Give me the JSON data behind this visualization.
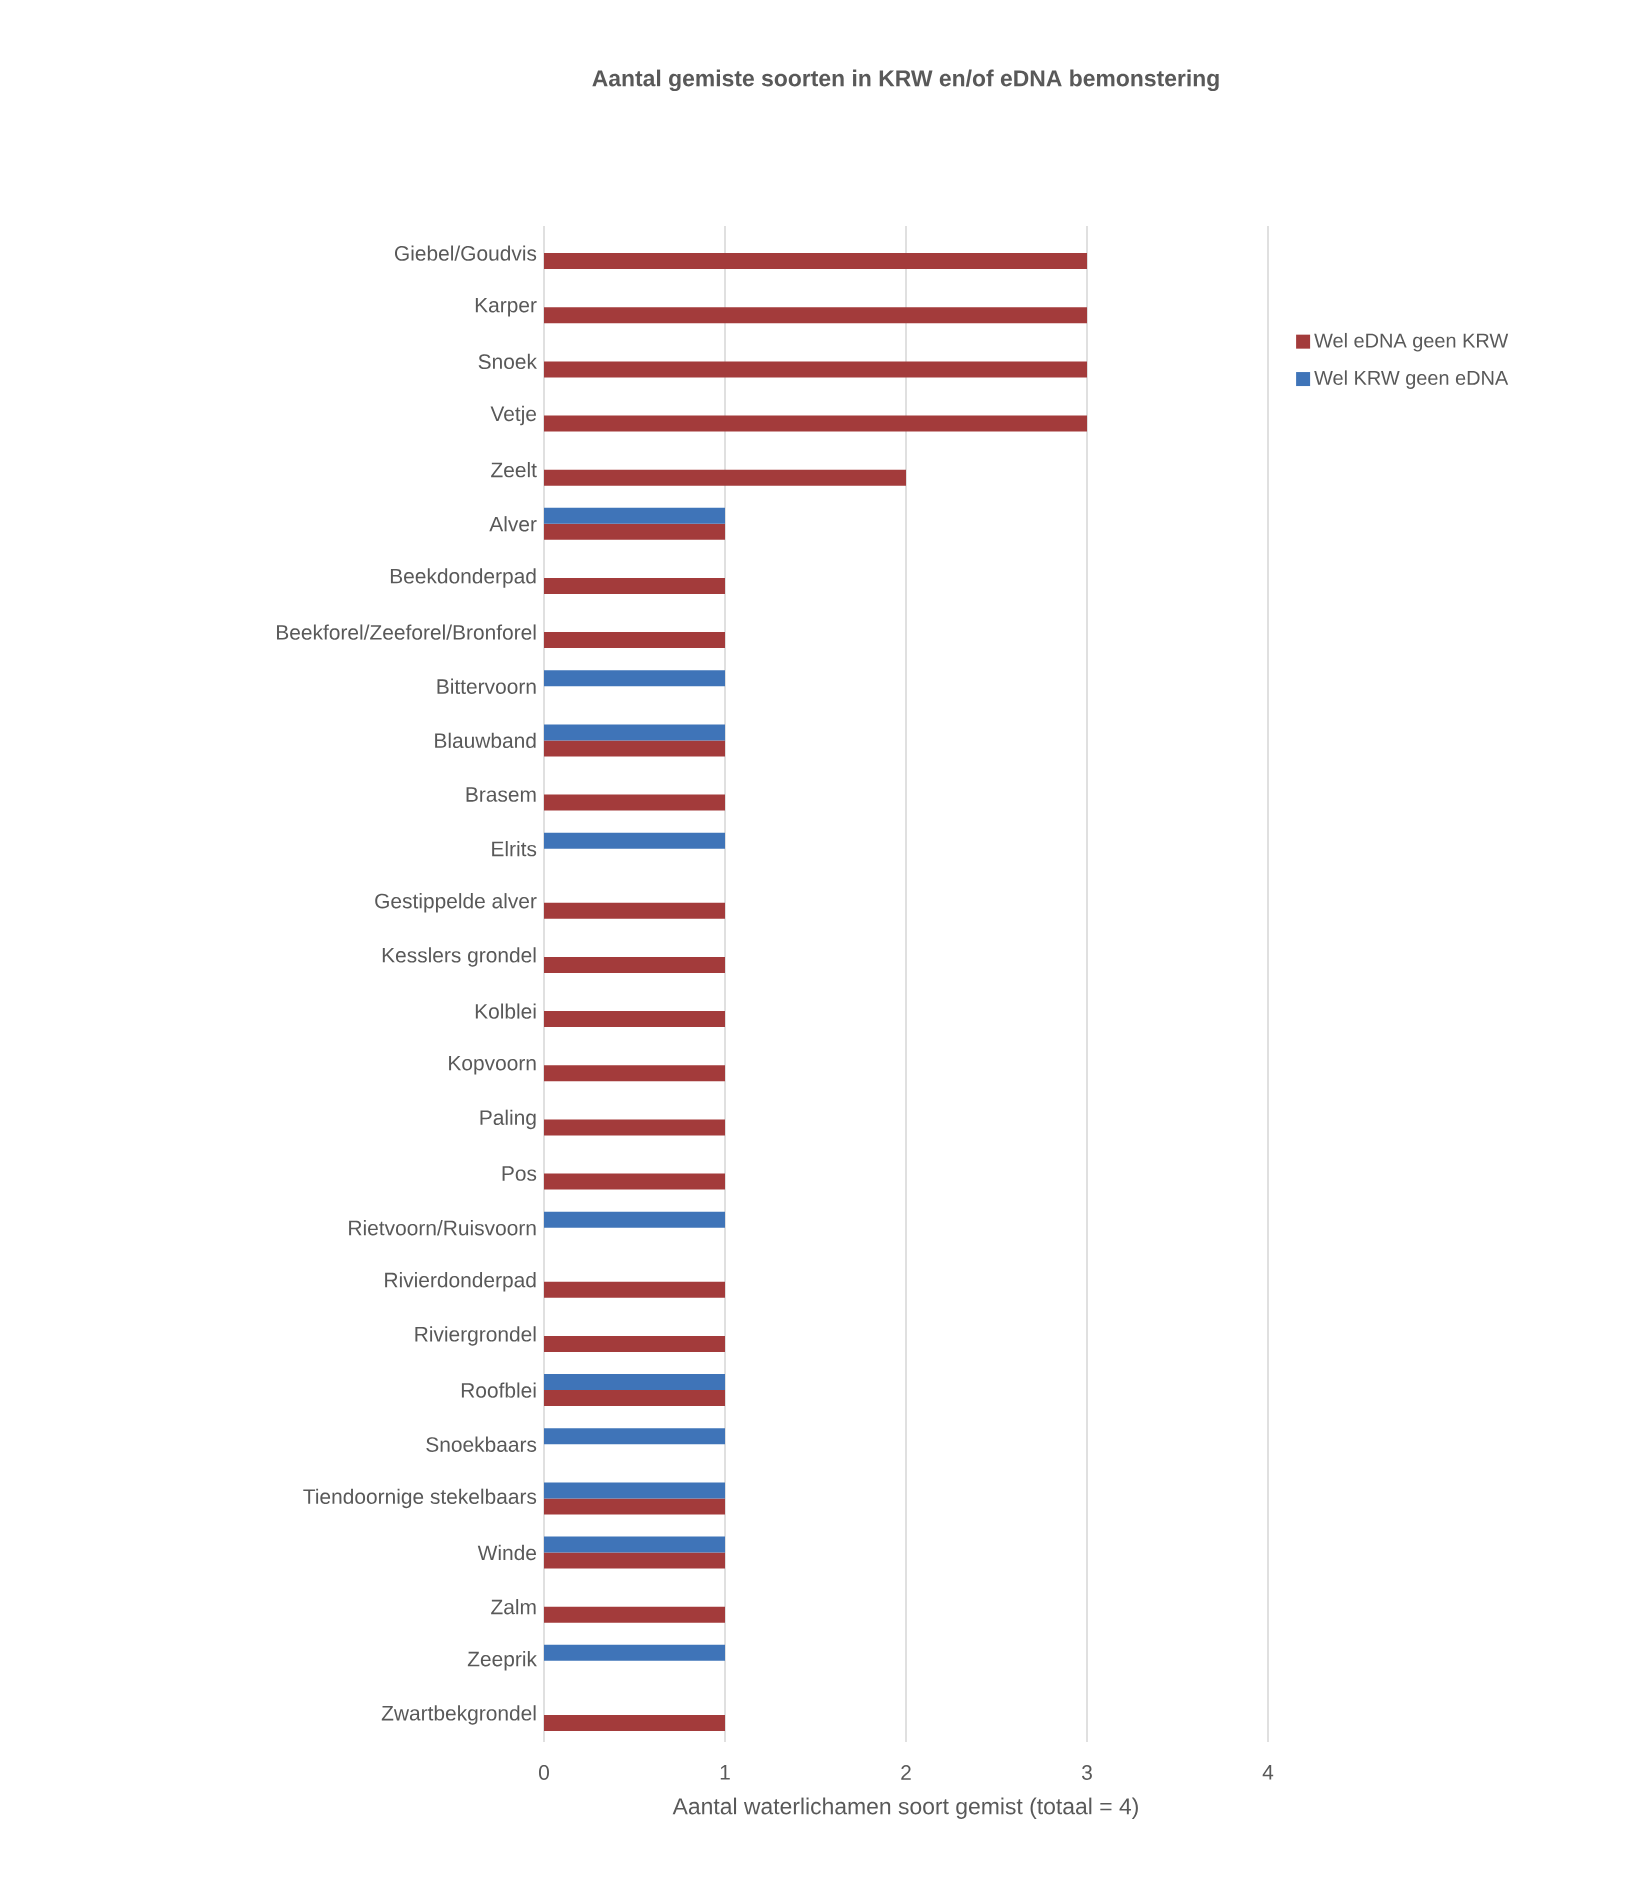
{
  "chart_data": {
    "type": "bar",
    "orientation": "horizontal",
    "title": "Aantal gemiste soorten in KRW en/of eDNA bemonstering",
    "xlabel": "Aantal waterlichamen soort gemist (totaal = 4)",
    "categories": [
      "Giebel/Goudvis",
      "Karper",
      "Snoek",
      "Vetje",
      "Zeelt",
      "Alver",
      "Beekdonderpad",
      "Beekforel/Zeeforel/Bronforel",
      "Bittervoorn",
      "Blauwband",
      "Brasem",
      "Elrits",
      "Gestippelde alver",
      "Kesslers grondel",
      "Kolblei",
      "Kopvoorn",
      "Paling",
      "Pos",
      "Rietvoorn/Ruisvoorn",
      "Rivierdonderpad",
      "Riviergrondel",
      "Roofblei",
      "Snoekbaars",
      "Tiendoornige stekelbaars",
      "Winde",
      "Zalm",
      "Zeeprik",
      "Zwartbekgrondel"
    ],
    "series": [
      {
        "name": "Wel eDNA geen KRW",
        "color": "#a33b3b",
        "values": [
          3,
          3,
          3,
          3,
          2,
          1,
          1,
          1,
          null,
          1,
          1,
          null,
          1,
          1,
          1,
          1,
          1,
          1,
          null,
          1,
          1,
          1,
          null,
          1,
          1,
          1,
          null,
          1
        ]
      },
      {
        "name": "Wel KRW geen eDNA",
        "color": "#3f74b8",
        "values": [
          null,
          null,
          null,
          null,
          null,
          1,
          null,
          null,
          1,
          1,
          null,
          1,
          null,
          null,
          null,
          null,
          null,
          null,
          1,
          null,
          null,
          1,
          1,
          1,
          1,
          null,
          1,
          null
        ]
      }
    ],
    "xlim": [
      0,
      4
    ],
    "xticks": [
      0,
      1,
      2,
      3,
      4
    ],
    "grid": "x",
    "legend": "top right"
  }
}
